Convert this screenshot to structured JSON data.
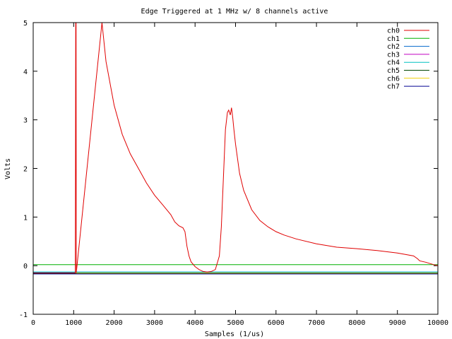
{
  "chart_data": {
    "type": "line",
    "title": "Edge Triggered at 1 MHz w/ 8 channels active",
    "xlabel": "Samples (1/us)",
    "ylabel": "Volts",
    "xlim": [
      0,
      10000
    ],
    "ylim": [
      -1,
      5
    ],
    "xticks": [
      0,
      1000,
      2000,
      3000,
      4000,
      5000,
      6000,
      7000,
      8000,
      9000,
      10000
    ],
    "yticks": [
      -1,
      0,
      1,
      2,
      3,
      4,
      5
    ],
    "legend_position": "top-right",
    "grid": false,
    "series": [
      {
        "name": "ch0",
        "color": "#e00000",
        "x": [
          0,
          1040,
          1045,
          1050,
          1060,
          1065,
          1700,
          1800,
          2000,
          2200,
          2400,
          2600,
          2800,
          3000,
          3200,
          3400,
          3500,
          3600,
          3700,
          3750,
          3800,
          3850,
          3900,
          4000,
          4100,
          4200,
          4300,
          4400,
          4500,
          4600,
          4650,
          4700,
          4750,
          4800,
          4830,
          4870,
          4900,
          4930,
          4960,
          5000,
          5100,
          5200,
          5400,
          5600,
          5800,
          6000,
          6200,
          6500,
          7000,
          7500,
          8000,
          8500,
          9000,
          9400,
          9500,
          9550,
          9700,
          9900,
          10000
        ],
        "y": [
          -0.15,
          -0.15,
          2,
          5,
          5,
          -0.15,
          5,
          4.2,
          3.3,
          2.7,
          2.3,
          2.0,
          1.7,
          1.45,
          1.25,
          1.05,
          0.9,
          0.82,
          0.78,
          0.7,
          0.4,
          0.2,
          0.08,
          -0.02,
          -0.08,
          -0.12,
          -0.13,
          -0.12,
          -0.08,
          0.2,
          0.8,
          1.8,
          2.8,
          3.15,
          3.2,
          3.1,
          3.25,
          3.05,
          2.8,
          2.5,
          1.9,
          1.55,
          1.15,
          0.93,
          0.8,
          0.7,
          0.63,
          0.55,
          0.45,
          0.38,
          0.35,
          0.31,
          0.26,
          0.2,
          0.14,
          0.1,
          0.07,
          0.02,
          0.0
        ]
      },
      {
        "name": "ch1",
        "color": "#00b000",
        "x": [
          0,
          10000
        ],
        "y": [
          0.02,
          0.02
        ]
      },
      {
        "name": "ch2",
        "color": "#0066cc",
        "x": [
          0,
          10000
        ],
        "y": [
          -0.14,
          -0.14
        ]
      },
      {
        "name": "ch3",
        "color": "#c000c0",
        "x": [
          0,
          10000
        ],
        "y": [
          -0.15,
          -0.15
        ]
      },
      {
        "name": "ch4",
        "color": "#00c0c0",
        "x": [
          0,
          10000
        ],
        "y": [
          -0.13,
          -0.13
        ]
      },
      {
        "name": "ch5",
        "color": "#004400",
        "x": [
          0,
          10000
        ],
        "y": [
          -0.16,
          -0.16
        ]
      },
      {
        "name": "ch6",
        "color": "#f0d000",
        "x": [
          0,
          10000
        ],
        "y": [
          -0.15,
          -0.15
        ]
      },
      {
        "name": "ch7",
        "color": "#000090",
        "x": [
          0,
          10000
        ],
        "y": [
          -0.17,
          -0.17
        ]
      }
    ]
  }
}
